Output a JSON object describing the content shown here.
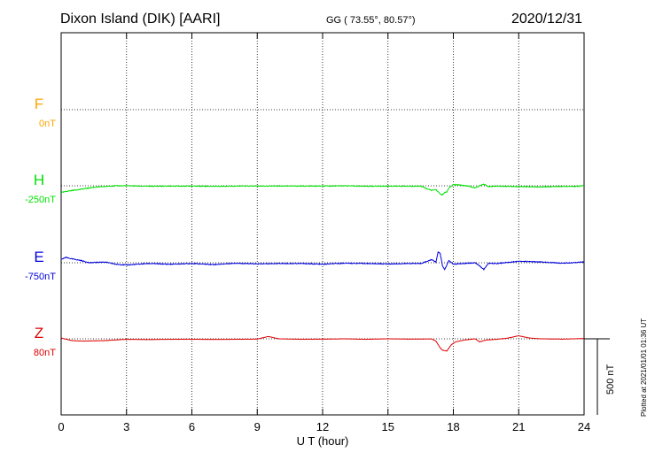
{
  "header": {
    "station": "Dixon Island (DIK)  [AARI]",
    "coords": "GG ( 73.55°,  80.57°)",
    "date": "2020/12/31"
  },
  "plotted_note": "Plotted at 2021/01/01 01:36 UT",
  "scale_label": "500 nT",
  "colors": {
    "F": "#ffa500",
    "H": "#00e000",
    "E": "#0000dd",
    "Z": "#dd0000"
  },
  "chart_data": {
    "type": "line",
    "xlabel": "U T (hour)",
    "xlim": [
      0,
      24
    ],
    "xticks": [
      0,
      3,
      6,
      9,
      12,
      15,
      18,
      21,
      24
    ],
    "grid": true,
    "series": [
      {
        "name": "F",
        "baseline_label": "0nT",
        "x": [],
        "y": []
      },
      {
        "name": "H",
        "baseline_label": "-250nT",
        "x": [
          0,
          0.3,
          0.8,
          1.5,
          2.5,
          3.0,
          4,
          5,
          6,
          7,
          8,
          9,
          10,
          11,
          12,
          13,
          14,
          15,
          16,
          16.5,
          16.8,
          17.0,
          17.2,
          17.4,
          17.5,
          17.6,
          17.7,
          17.8,
          18.0,
          18.3,
          18.7,
          19.0,
          19.2,
          19.4,
          19.6,
          20,
          21,
          22,
          23,
          23.5,
          24
        ],
        "y": [
          -45,
          -35,
          -25,
          -10,
          0,
          0,
          -3,
          -2,
          -2,
          -3,
          -2,
          -2,
          -1,
          -2,
          -2,
          0,
          -3,
          -2,
          -3,
          -2,
          -20,
          -30,
          -25,
          -55,
          -60,
          -45,
          -40,
          -15,
          8,
          5,
          -2,
          -15,
          0,
          10,
          -5,
          -2,
          -5,
          -8,
          -3,
          -5,
          0
        ],
        "visible": true
      },
      {
        "name": "E",
        "baseline_label": "-750nT",
        "x": [
          0,
          0.2,
          0.5,
          0.9,
          1.3,
          2.0,
          2.5,
          3.0,
          4,
          5,
          6,
          7,
          8,
          9,
          10,
          11,
          12,
          13,
          14,
          15,
          16,
          16.5,
          16.8,
          17.0,
          17.2,
          17.3,
          17.4,
          17.5,
          17.6,
          17.8,
          18.0,
          18.5,
          19.0,
          19.2,
          19.4,
          19.6,
          20,
          21,
          22,
          23,
          24
        ],
        "y": [
          20,
          35,
          25,
          15,
          0,
          5,
          -10,
          -15,
          -5,
          -10,
          -5,
          -12,
          -3,
          -8,
          -5,
          -5,
          -10,
          -3,
          -5,
          -8,
          -5,
          -5,
          10,
          20,
          5,
          70,
          60,
          -20,
          -45,
          15,
          -10,
          -5,
          0,
          -20,
          -45,
          -5,
          -5,
          10,
          5,
          -3,
          5
        ],
        "visible": true
      },
      {
        "name": "Z",
        "baseline_label": "80nT",
        "x": [
          0,
          0.5,
          1.0,
          2.0,
          3.0,
          4,
          5,
          6,
          7,
          8,
          9,
          9.5,
          10,
          11,
          12,
          13,
          14,
          15,
          16,
          17.0,
          17.2,
          17.4,
          17.5,
          17.7,
          17.9,
          18.1,
          18.5,
          19,
          19.2,
          19.5,
          20,
          20.5,
          21,
          21.5,
          22,
          23,
          24
        ],
        "y": [
          5,
          -12,
          -15,
          -12,
          -3,
          -5,
          -3,
          -3,
          -4,
          -3,
          -2,
          15,
          0,
          -3,
          -2,
          0,
          -3,
          0,
          -2,
          -1,
          -15,
          -60,
          -75,
          -80,
          -40,
          -20,
          -8,
          0,
          -20,
          -8,
          -3,
          5,
          20,
          5,
          0,
          -2,
          2
        ],
        "visible": true
      }
    ]
  }
}
